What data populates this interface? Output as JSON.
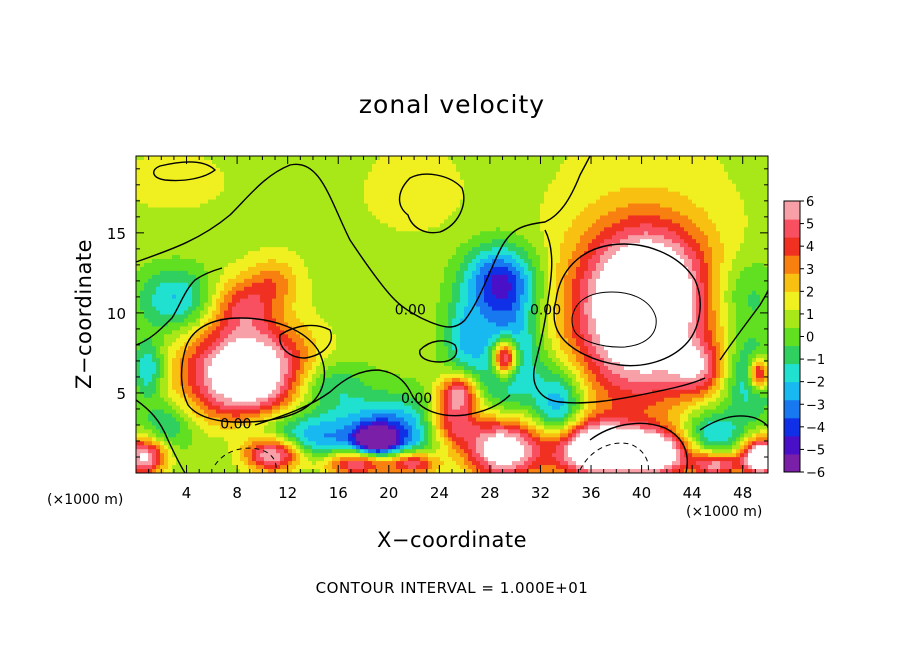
{
  "chart_data": {
    "type": "heatmap",
    "title": "zonal velocity",
    "xlabel": "X−coordinate",
    "ylabel": "Z−coordinate",
    "x_unit_left": "(×1000 m)",
    "x_unit_right": "(×1000 m)",
    "note": "CONTOUR INTERVAL = 1.000E+01",
    "xlim": [
      0,
      50
    ],
    "ylim": [
      0,
      19.8
    ],
    "xticks": [
      "4",
      "8",
      "12",
      "16",
      "20",
      "24",
      "28",
      "32",
      "36",
      "40",
      "44",
      "48"
    ],
    "yticks": [
      "5",
      "10",
      "15"
    ],
    "colorbar": {
      "min": -6,
      "max": 6,
      "labels": [
        "6",
        "5",
        "4",
        "3",
        "2",
        "1",
        "0",
        "−1",
        "−2",
        "−3",
        "−4",
        "−5",
        "−6"
      ],
      "colors": [
        "#7a1fa8",
        "#4a10c8",
        "#1030e8",
        "#1878f0",
        "#18b8f0",
        "#20e0d0",
        "#30d060",
        "#60e020",
        "#a8e818",
        "#f0f020",
        "#f8c010",
        "#f88010",
        "#f03020",
        "#f85060",
        "#f8a0a8"
      ]
    },
    "contour_labels": [
      {
        "text": "0.00",
        "x": 7.9,
        "y": 3.1
      },
      {
        "text": "0.00",
        "x": 22.2,
        "y": 4.7
      },
      {
        "text": "0.00",
        "x": 21.7,
        "y": 10.2
      },
      {
        "text": "0.00",
        "x": 32.4,
        "y": 10.2
      }
    ],
    "features": [
      {
        "x": 8.8,
        "y": 6.2,
        "rx": 4.8,
        "ry": 3.0,
        "v": 8
      },
      {
        "x": 40.0,
        "y": 9.8,
        "rx": 5.6,
        "ry": 5.5,
        "v": 8
      },
      {
        "x": 41.0,
        "y": 12.5,
        "rx": 4.0,
        "ry": 3.0,
        "v": 2
      },
      {
        "x": 8.5,
        "y": 10.5,
        "rx": 2.5,
        "ry": 1.8,
        "v": 3
      },
      {
        "x": 11.0,
        "y": 12.0,
        "rx": 2.0,
        "ry": 1.5,
        "v": 2
      },
      {
        "x": 28.8,
        "y": 12.0,
        "rx": 2.8,
        "ry": 2.2,
        "v": -5
      },
      {
        "x": 29.5,
        "y": 7.5,
        "rx": 2.5,
        "ry": 3.5,
        "v": -4
      },
      {
        "x": 29.2,
        "y": 7.2,
        "rx": 1.0,
        "ry": 1.2,
        "v": 8
      },
      {
        "x": 26.0,
        "y": 8.5,
        "rx": 1.6,
        "ry": 2.4,
        "v": -2.5
      },
      {
        "x": 3.2,
        "y": 10.8,
        "rx": 3.0,
        "ry": 2.0,
        "v": -3
      },
      {
        "x": 1.0,
        "y": 6.5,
        "rx": 1.2,
        "ry": 1.8,
        "v": -3
      },
      {
        "x": 0.6,
        "y": 1.0,
        "rx": 1.8,
        "ry": 1.2,
        "v": 6
      },
      {
        "x": 2.5,
        "y": 3.0,
        "rx": 2.0,
        "ry": 1.5,
        "v": -2
      },
      {
        "x": 15.0,
        "y": 5.5,
        "rx": 3.0,
        "ry": 1.5,
        "v": -2.5
      },
      {
        "x": 12.5,
        "y": 2.0,
        "rx": 4.0,
        "ry": 1.8,
        "v": -4.5
      },
      {
        "x": 20.0,
        "y": 2.5,
        "rx": 4.0,
        "ry": 2.0,
        "v": -4.5
      },
      {
        "x": 19.0,
        "y": 2.0,
        "rx": 1.5,
        "ry": 0.8,
        "v": -6
      },
      {
        "x": 11.0,
        "y": 1.2,
        "rx": 2.5,
        "ry": 1.2,
        "v": 8
      },
      {
        "x": 17.5,
        "y": 0.6,
        "rx": 3.0,
        "ry": 0.9,
        "v": 6
      },
      {
        "x": 22.0,
        "y": 0.6,
        "rx": 2.0,
        "ry": 0.8,
        "v": 5
      },
      {
        "x": 25.5,
        "y": 5.0,
        "rx": 1.5,
        "ry": 1.2,
        "v": 5
      },
      {
        "x": 29.0,
        "y": 1.5,
        "rx": 3.0,
        "ry": 2.0,
        "v": 7
      },
      {
        "x": 33.5,
        "y": 4.0,
        "rx": 2.0,
        "ry": 2.5,
        "v": -4
      },
      {
        "x": 36.0,
        "y": 1.5,
        "rx": 3.5,
        "ry": 1.8,
        "v": 8
      },
      {
        "x": 41.0,
        "y": 1.2,
        "rx": 3.0,
        "ry": 1.5,
        "v": 7
      },
      {
        "x": 45.5,
        "y": 2.5,
        "rx": 2.5,
        "ry": 1.5,
        "v": -3
      },
      {
        "x": 46.0,
        "y": 0.5,
        "rx": 2.0,
        "ry": 0.8,
        "v": 5
      },
      {
        "x": 49.5,
        "y": 1.0,
        "rx": 1.5,
        "ry": 1.2,
        "v": 8
      },
      {
        "x": 48.5,
        "y": 6.0,
        "rx": 2.0,
        "ry": 2.5,
        "v": -3
      },
      {
        "x": 49.3,
        "y": 6.2,
        "rx": 0.8,
        "ry": 1.0,
        "v": 6
      },
      {
        "x": 44.5,
        "y": 6.5,
        "rx": 2.0,
        "ry": 1.5,
        "v": 3
      },
      {
        "x": 48.0,
        "y": 11.0,
        "rx": 3.0,
        "ry": 2.5,
        "v": -2
      },
      {
        "x": 22.0,
        "y": 17.0,
        "rx": 4.0,
        "ry": 2.5,
        "v": 0.5
      },
      {
        "x": 3.0,
        "y": 18.0,
        "rx": 3.5,
        "ry": 1.5,
        "v": 0.6
      },
      {
        "x": 25.0,
        "y": 3.0,
        "rx": 2.0,
        "ry": 1.5,
        "v": 4
      }
    ]
  }
}
